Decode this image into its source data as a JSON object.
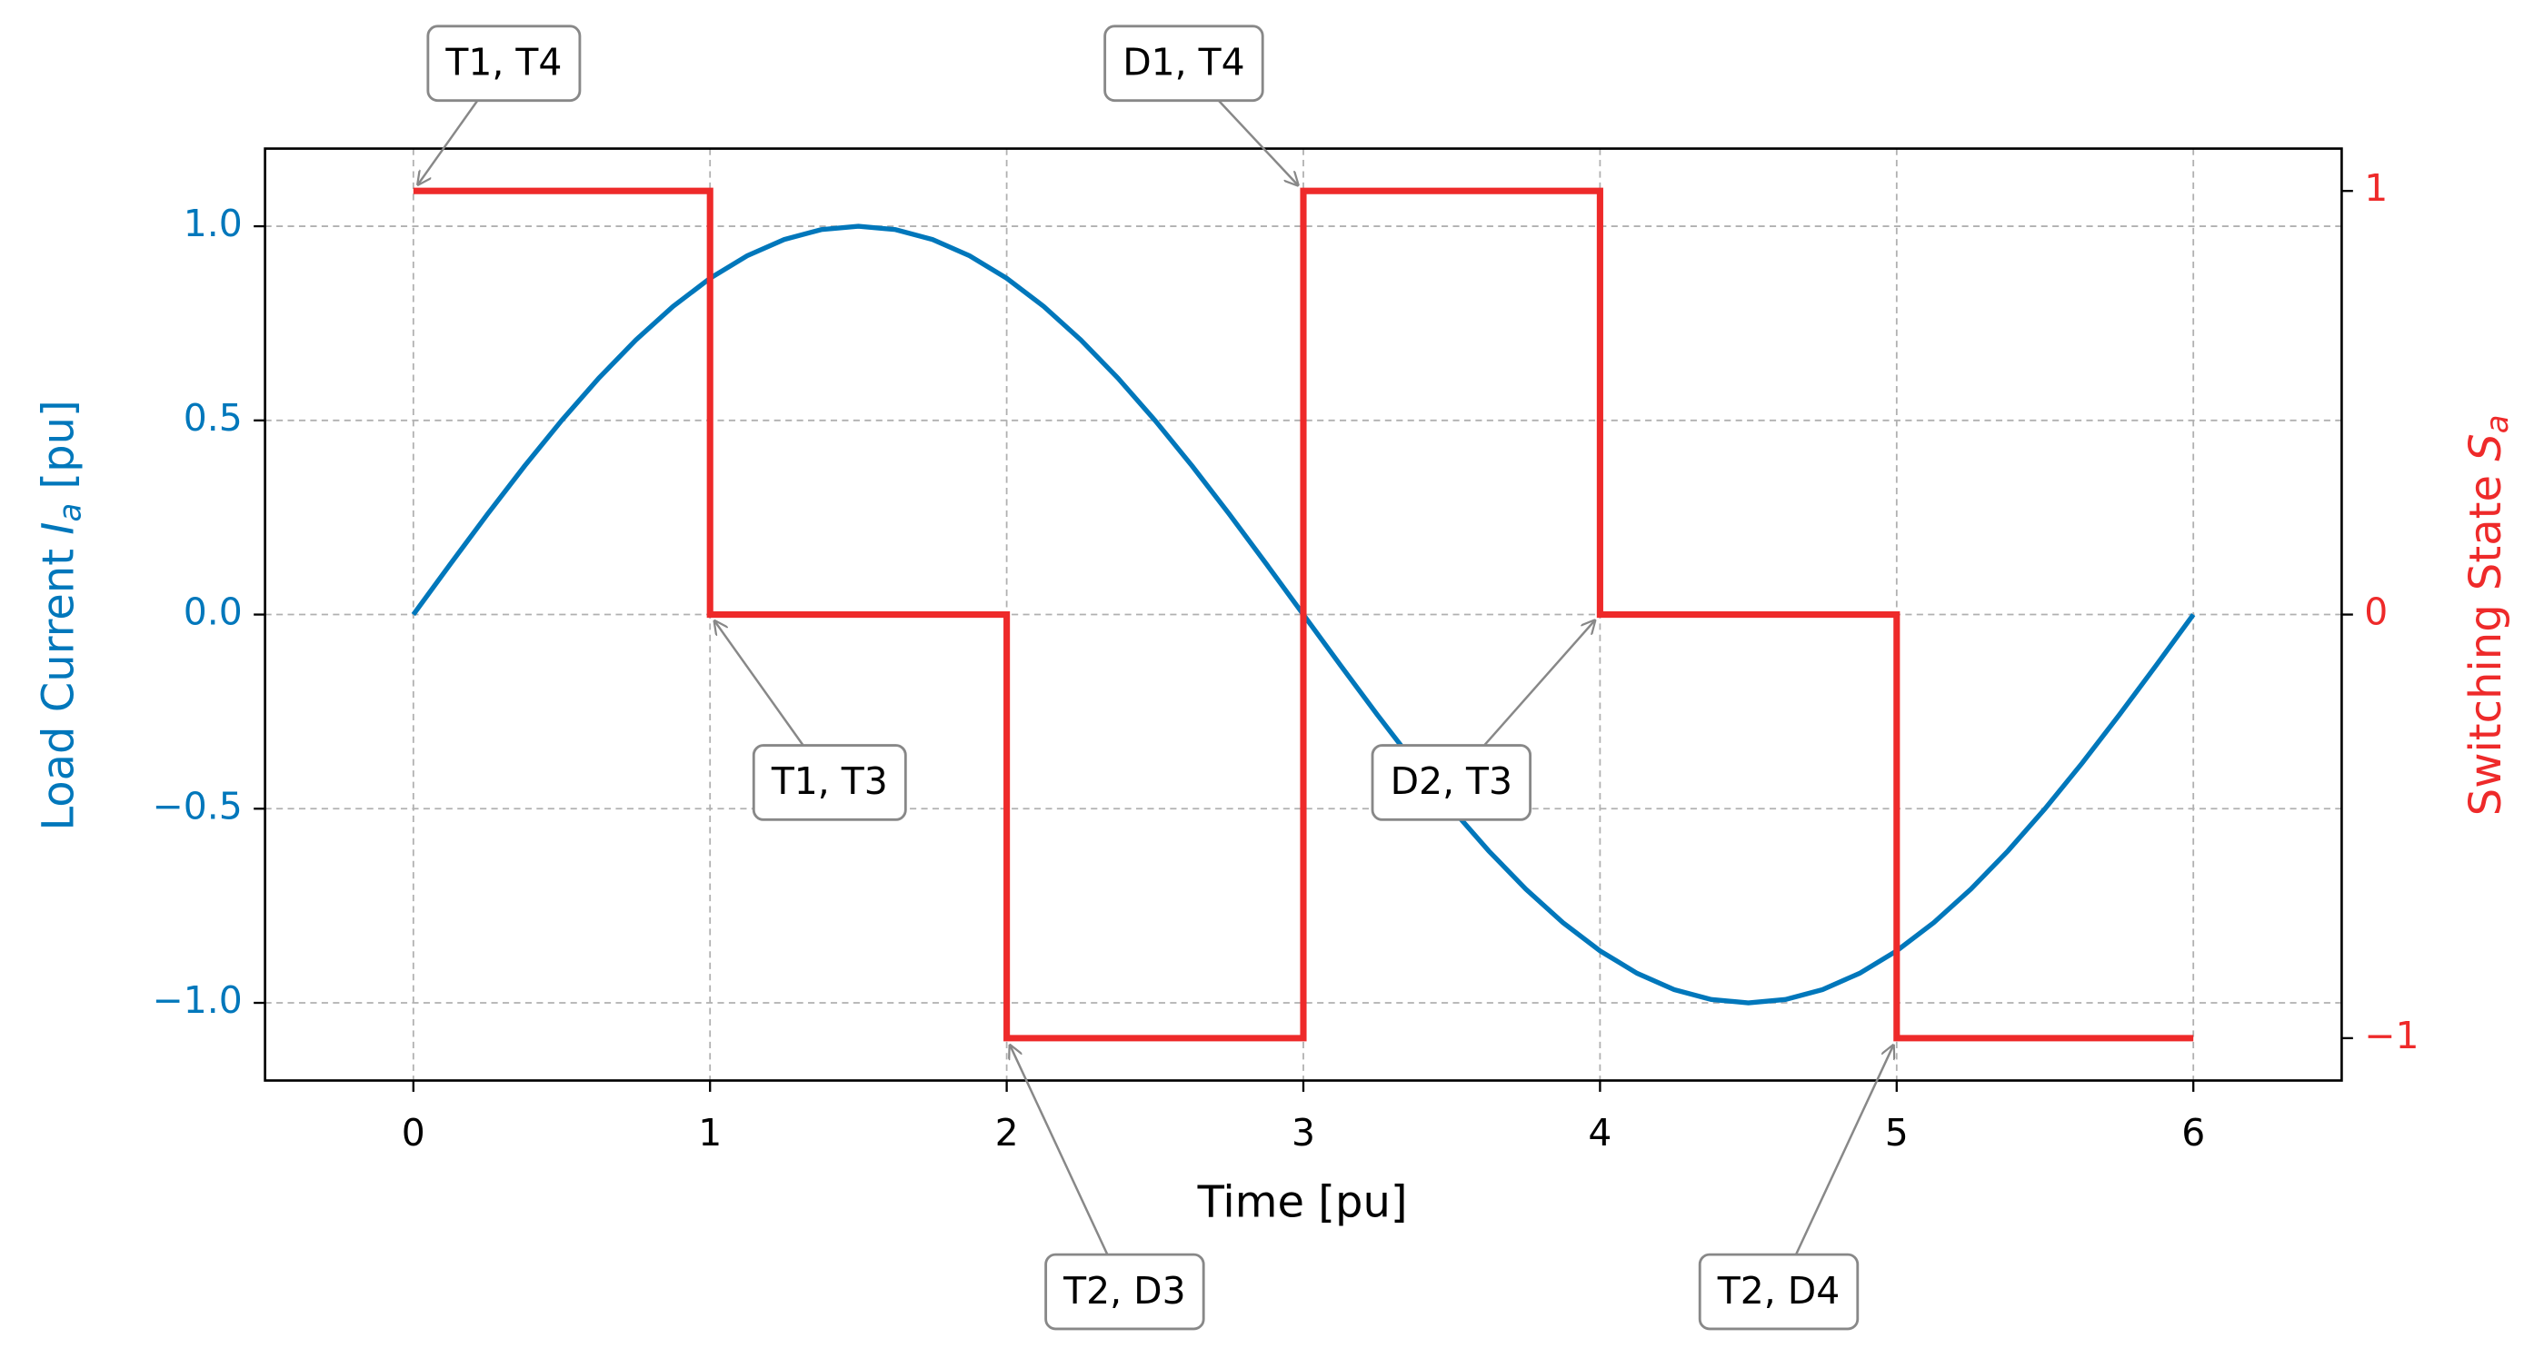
{
  "chart_data": {
    "type": "line",
    "xlabel": "Time [pu]",
    "ylabel": {
      "text": "Load Current ",
      "var": "I",
      "sub": "a",
      "unit": "[pu]"
    },
    "y2label": {
      "text": "Switching State ",
      "var": "S",
      "sub": "a"
    },
    "xlim": [
      -0.5,
      6.5
    ],
    "xticks": [
      0,
      1,
      2,
      3,
      4,
      5,
      6
    ],
    "ylim": [
      -1.2,
      1.2
    ],
    "yticks": [
      {
        "value": -1.0,
        "label": "−1.0"
      },
      {
        "value": -0.5,
        "label": "−0.5"
      },
      {
        "value": 0.0,
        "label": "0.0"
      },
      0.5,
      {
        "value": 1.0,
        "label": "1.0"
      }
    ],
    "y2lim": [
      -1.1,
      1.1
    ],
    "y2ticks": [
      {
        "value": -1,
        "label": "−1"
      },
      0,
      1
    ],
    "y_color": "#0077bb",
    "y2_color": "#ee2a2a",
    "grid": true,
    "series": [
      {
        "color": "#0077bb",
        "x": [
          0,
          0.125,
          0.25,
          0.375,
          0.5,
          0.625,
          0.75,
          0.875,
          1,
          1.125,
          1.25,
          1.375,
          1.5,
          1.625,
          1.75,
          1.875,
          2,
          2.125,
          2.25,
          2.375,
          2.5,
          2.625,
          2.75,
          2.875,
          3,
          3.125,
          3.25,
          3.375,
          3.5,
          3.625,
          3.75,
          3.875,
          4,
          4.125,
          4.25,
          4.375,
          4.5,
          4.625,
          4.75,
          4.875,
          5,
          5.125,
          5.25,
          5.375,
          5.5,
          5.625,
          5.75,
          5.875,
          6
        ],
        "values": [
          0,
          0.1305,
          0.2588,
          0.3827,
          0.5,
          0.6088,
          0.7071,
          0.7934,
          0.866,
          0.9239,
          0.9659,
          0.9914,
          1,
          0.9914,
          0.9659,
          0.9239,
          0.866,
          0.7934,
          0.7071,
          0.6088,
          0.5,
          0.3827,
          0.2588,
          0.1305,
          0,
          -0.1305,
          -0.2588,
          -0.3827,
          -0.5,
          -0.6088,
          -0.7071,
          -0.7934,
          -0.866,
          -0.9239,
          -0.9659,
          -0.9914,
          -1,
          -0.9914,
          -0.9659,
          -0.9239,
          -0.866,
          -0.7934,
          -0.7071,
          -0.6088,
          -0.5,
          -0.3827,
          -0.2588,
          -0.1305,
          0
        ]
      },
      {
        "color": "#ee2a2a",
        "axis": "y2",
        "x": [
          0,
          1,
          1,
          2,
          2,
          3,
          3,
          4,
          4,
          5,
          5,
          6
        ],
        "values": [
          1,
          1,
          0,
          0,
          -1,
          -1,
          1,
          1,
          0,
          0,
          -1,
          -1
        ]
      }
    ],
    "annotations": [
      {
        "text": "T1, T4",
        "x": 0,
        "y": 1
      },
      {
        "text": "T1, T3",
        "x": 1,
        "y": 0
      },
      {
        "text": "T2, D3",
        "x": 2,
        "y": -1
      },
      {
        "text": "D1, T4",
        "x": 3,
        "y": 1
      },
      {
        "text": "D2, T3",
        "x": 4,
        "y": 0
      },
      {
        "text": "T2, D4",
        "x": 5,
        "y": -1
      }
    ]
  }
}
